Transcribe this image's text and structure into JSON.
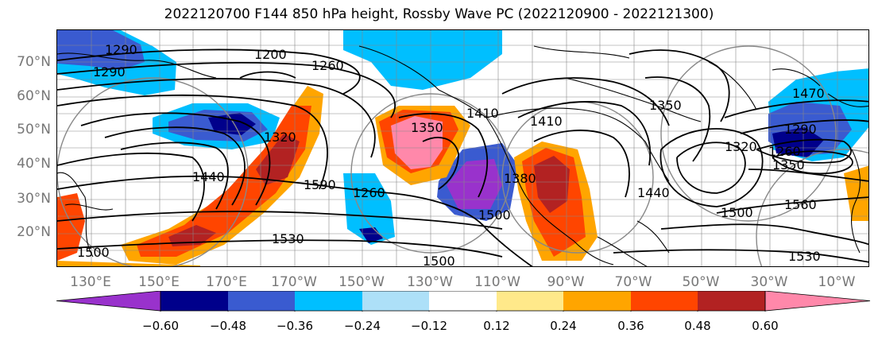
{
  "title": "2022120700 F144 850 hPa height, Rossby Wave PC (2022120900 - 2022121300)",
  "lat_labels": [
    "70°N",
    "60°N",
    "50°N",
    "40°N",
    "30°N",
    "20°N"
  ],
  "lon_labels": [
    "130°E",
    "150°E",
    "170°E",
    "170°W",
    "150°W",
    "130°W",
    "110°W",
    "90°W",
    "70°W",
    "50°W",
    "30°W",
    "10°W"
  ],
  "contour_labels": [
    "1290",
    "1200",
    "1260",
    "1290",
    "1320",
    "1410",
    "1440",
    "1590",
    "1260",
    "1350",
    "1410",
    "1380",
    "1500",
    "1530",
    "1500",
    "1440",
    "1500",
    "1560",
    "1530",
    "1470",
    "1290",
    "1260",
    "1350",
    "1500",
    "1320",
    "1350"
  ],
  "colorbar": {
    "ticks": [
      "−0.60",
      "−0.48",
      "−0.36",
      "−0.24",
      "−0.12",
      "0.12",
      "0.24",
      "0.36",
      "0.48",
      "0.60"
    ],
    "colors": [
      "#9932CC",
      "#00008B",
      "#3A5BD0",
      "#00BFFF",
      "#ADE0F8",
      "#FFFFFF",
      "#FFE98A",
      "#FFA500",
      "#FF4500",
      "#B22222",
      "#FF88AA"
    ]
  }
}
